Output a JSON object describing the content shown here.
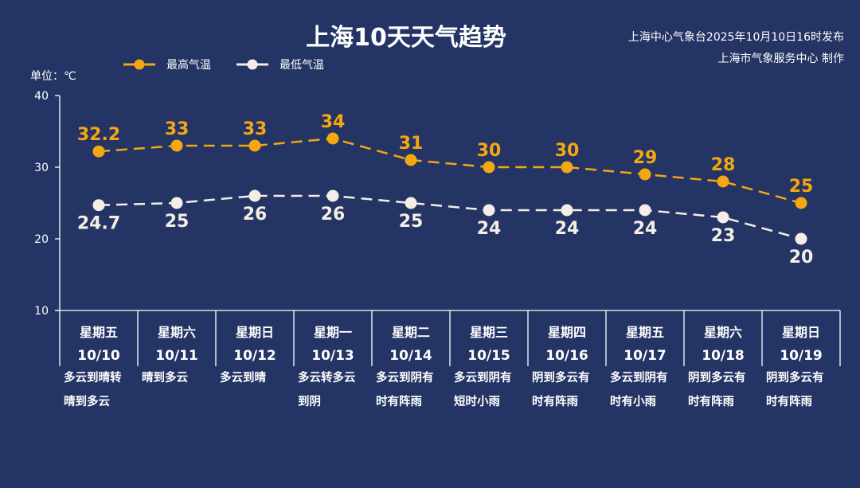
{
  "header": {
    "title": "上海10天天气趋势",
    "issuer_line1": "上海中心气象台2025年10月10日16时发布",
    "issuer_line2": "上海市气象服务中心 制作"
  },
  "legend": {
    "high_label": "最高气温",
    "low_label": "最低气温"
  },
  "unit_label": "单位：℃",
  "colors": {
    "background": "#243464",
    "high": "#F5A711",
    "low": "#F5EEE6",
    "axis": "#FFFFFF"
  },
  "days": [
    {
      "weekday": "星期五",
      "date": "10/10",
      "weather": [
        "多云到晴转",
        "晴到多云"
      ]
    },
    {
      "weekday": "星期六",
      "date": "10/11",
      "weather": [
        "晴到多云",
        ""
      ]
    },
    {
      "weekday": "星期日",
      "date": "10/12",
      "weather": [
        "多云到晴",
        ""
      ]
    },
    {
      "weekday": "星期一",
      "date": "10/13",
      "weather": [
        "多云转多云",
        "到阴"
      ]
    },
    {
      "weekday": "星期二",
      "date": "10/14",
      "weather": [
        "多云到阴有",
        "时有阵雨"
      ]
    },
    {
      "weekday": "星期三",
      "date": "10/15",
      "weather": [
        "多云到阴有",
        "短时小雨"
      ]
    },
    {
      "weekday": "星期四",
      "date": "10/16",
      "weather": [
        "阴到多云有",
        "时有阵雨"
      ]
    },
    {
      "weekday": "星期五",
      "date": "10/17",
      "weather": [
        "多云到阴有",
        "时有小雨"
      ]
    },
    {
      "weekday": "星期六",
      "date": "10/18",
      "weather": [
        "阴到多云有",
        "时有阵雨"
      ]
    },
    {
      "weekday": "星期日",
      "date": "10/19",
      "weather": [
        "阴到多云有",
        "时有阵雨"
      ]
    }
  ],
  "chart_data": {
    "type": "line",
    "title": "上海10天天气趋势",
    "xlabel": "",
    "ylabel": "单位：℃",
    "categories": [
      "10/10",
      "10/11",
      "10/12",
      "10/13",
      "10/14",
      "10/15",
      "10/16",
      "10/17",
      "10/18",
      "10/19"
    ],
    "series": [
      {
        "name": "最高气温",
        "values": [
          32.2,
          33,
          33,
          34,
          31,
          30,
          30,
          29,
          28,
          25
        ],
        "labels": [
          "32.2",
          "33",
          "33",
          "34",
          "31",
          "30",
          "30",
          "29",
          "28",
          "25"
        ],
        "color": "#F5A711",
        "line_style": "dashed",
        "label_position": "above"
      },
      {
        "name": "最低气温",
        "values": [
          24.7,
          25,
          26,
          26,
          25,
          24,
          24,
          24,
          23,
          20
        ],
        "labels": [
          "24.7",
          "25",
          "26",
          "26",
          "25",
          "24",
          "24",
          "24",
          "23",
          "20"
        ],
        "color": "#F5EEE6",
        "line_style": "dashed",
        "label_position": "below"
      }
    ],
    "yticks": [
      "40",
      "30",
      "20",
      "10"
    ],
    "ylim": [
      10,
      40
    ],
    "grid": false,
    "legend_position": "top"
  }
}
